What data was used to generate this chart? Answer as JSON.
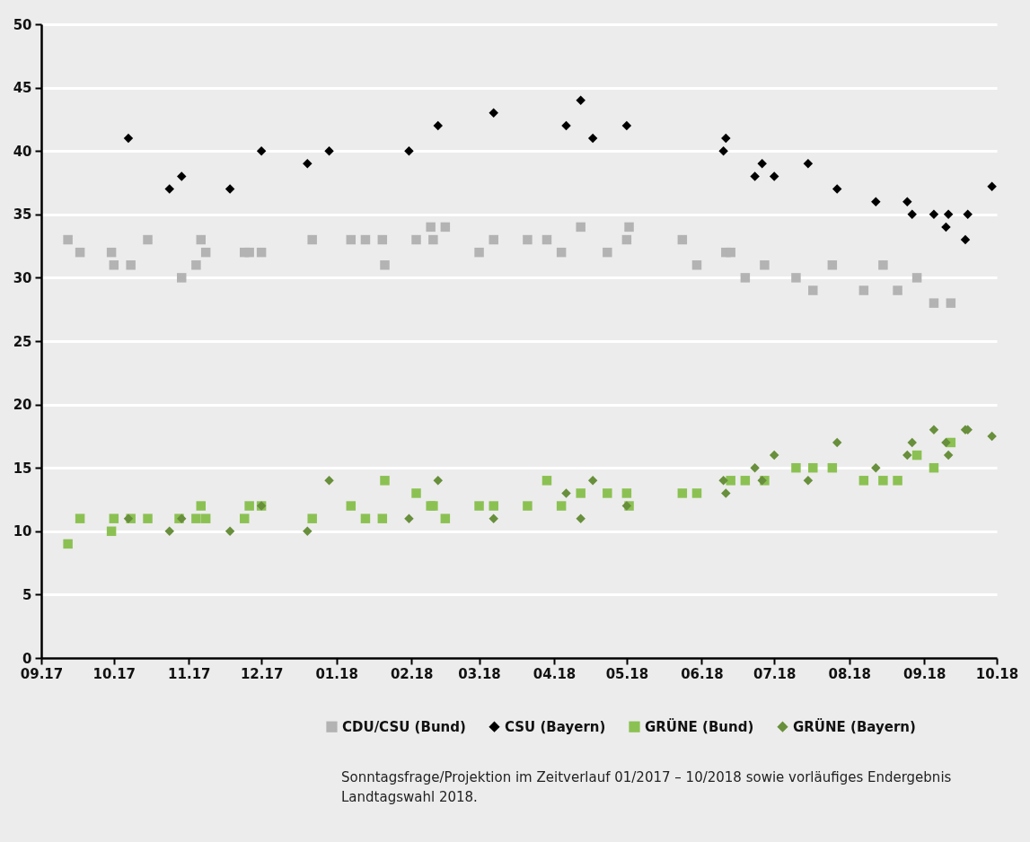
{
  "chart_data": {
    "type": "scatter",
    "xlim": [
      "2017-09-01",
      "2018-10-01"
    ],
    "xticks": [
      {
        "value": "2017-09-01",
        "label": "09.17"
      },
      {
        "value": "2017-10-01",
        "label": "10.17"
      },
      {
        "value": "2017-11-01",
        "label": "11.17"
      },
      {
        "value": "2017-12-01",
        "label": "12.17"
      },
      {
        "value": "2018-01-01",
        "label": "01.18"
      },
      {
        "value": "2018-02-01",
        "label": "02.18"
      },
      {
        "value": "2018-03-01",
        "label": "03.18"
      },
      {
        "value": "2018-04-01",
        "label": "04.18"
      },
      {
        "value": "2018-05-01",
        "label": "05.18"
      },
      {
        "value": "2018-06-01",
        "label": "06.18"
      },
      {
        "value": "2018-07-01",
        "label": "07.18"
      },
      {
        "value": "2018-08-01",
        "label": "08.18"
      },
      {
        "value": "2018-09-01",
        "label": "09.18"
      },
      {
        "value": "2018-10-01",
        "label": "10.18"
      }
    ],
    "ylim": [
      0,
      50
    ],
    "yticks": [
      0,
      5,
      10,
      15,
      20,
      25,
      30,
      35,
      40,
      45,
      50
    ],
    "grid": "y",
    "legend": "bottom right",
    "annotations": [
      "Sonntagsfrage/Projektion im Zeitverlauf 01/2017 – 10/2018 sowie vorläufiges Endergebnis Landtagswahl 2018."
    ],
    "series": [
      {
        "name": "CDU/CSU (Bund)",
        "color": "#b3b3b3",
        "marker": "square",
        "x": [
          "2017-09-12",
          "2017-09-17",
          "2017-09-30",
          "2017-10-01",
          "2017-10-08",
          "2017-10-15",
          "2017-10-29",
          "2017-11-04",
          "2017-11-06",
          "2017-11-08",
          "2017-11-24",
          "2017-11-26",
          "2017-12-01",
          "2017-12-22",
          "2018-01-07",
          "2018-01-13",
          "2018-01-20",
          "2018-01-21",
          "2018-02-03",
          "2018-02-09",
          "2018-02-10",
          "2018-02-15",
          "2018-03-01",
          "2018-03-07",
          "2018-03-21",
          "2018-03-29",
          "2018-04-04",
          "2018-04-12",
          "2018-04-23",
          "2018-05-01",
          "2018-05-02",
          "2018-05-24",
          "2018-05-30",
          "2018-06-11",
          "2018-06-13",
          "2018-06-19",
          "2018-06-27",
          "2018-07-10",
          "2018-07-17",
          "2018-07-25",
          "2018-08-07",
          "2018-08-15",
          "2018-08-21",
          "2018-08-29",
          "2018-09-05",
          "2018-09-12"
        ],
        "values": [
          33,
          32,
          32,
          31,
          31,
          33,
          30,
          31,
          33,
          32,
          32,
          32,
          32,
          33,
          33,
          33,
          33,
          31,
          33,
          34,
          33,
          34,
          32,
          33,
          33,
          33,
          32,
          34,
          32,
          33,
          34,
          33,
          31,
          32,
          32,
          30,
          31,
          30,
          29,
          31,
          29,
          31,
          29,
          30,
          28,
          28
        ]
      },
      {
        "name": "CSU (Bayern)",
        "color": "#000000",
        "marker": "diamond",
        "x": [
          "2017-10-07",
          "2017-10-24",
          "2017-10-29",
          "2017-11-18",
          "2017-12-01",
          "2017-12-20",
          "2017-12-29",
          "2018-01-31",
          "2018-02-12",
          "2018-03-07",
          "2018-04-06",
          "2018-04-12",
          "2018-04-17",
          "2018-05-01",
          "2018-06-10",
          "2018-06-11",
          "2018-06-23",
          "2018-06-26",
          "2018-07-01",
          "2018-07-15",
          "2018-07-27",
          "2018-08-12",
          "2018-08-25",
          "2018-08-27",
          "2018-09-05",
          "2018-09-10",
          "2018-09-11",
          "2018-09-18",
          "2018-09-19",
          "2018-09-29"
        ],
        "values": [
          41,
          37,
          38,
          37,
          40,
          39,
          40,
          40,
          42,
          43,
          42,
          44,
          41,
          42,
          40,
          41,
          38,
          39,
          38,
          39,
          37,
          36,
          36,
          35,
          35,
          34,
          35,
          33,
          35,
          37.2
        ]
      },
      {
        "name": "GRÜNE (Bund)",
        "color": "#8bc152",
        "marker": "square",
        "x": [
          "2017-09-12",
          "2017-09-17",
          "2017-09-30",
          "2017-10-01",
          "2017-10-08",
          "2017-10-15",
          "2017-10-28",
          "2017-11-04",
          "2017-11-06",
          "2017-11-08",
          "2017-11-24",
          "2017-11-26",
          "2017-12-01",
          "2017-12-22",
          "2018-01-07",
          "2018-01-13",
          "2018-01-20",
          "2018-01-21",
          "2018-02-03",
          "2018-02-09",
          "2018-02-10",
          "2018-02-15",
          "2018-03-01",
          "2018-03-07",
          "2018-03-21",
          "2018-03-29",
          "2018-04-04",
          "2018-04-12",
          "2018-04-23",
          "2018-05-01",
          "2018-05-02",
          "2018-05-24",
          "2018-05-30",
          "2018-06-13",
          "2018-06-19",
          "2018-06-27",
          "2018-07-10",
          "2018-07-17",
          "2018-07-25",
          "2018-08-07",
          "2018-08-15",
          "2018-08-21",
          "2018-08-29",
          "2018-09-05",
          "2018-09-12"
        ],
        "values": [
          9,
          11,
          10,
          11,
          11,
          11,
          11,
          11,
          12,
          11,
          11,
          12,
          12,
          11,
          12,
          11,
          11,
          14,
          13,
          12,
          12,
          11,
          12,
          12,
          12,
          14,
          12,
          13,
          13,
          13,
          12,
          13,
          13,
          14,
          14,
          14,
          15,
          15,
          15,
          14,
          14,
          14,
          16,
          15,
          17
        ]
      },
      {
        "name": "GRÜNE (Bayern)",
        "color": "#688f3b",
        "marker": "diamond",
        "x": [
          "2017-10-07",
          "2017-10-24",
          "2017-10-29",
          "2017-11-18",
          "2017-12-01",
          "2017-12-20",
          "2017-12-29",
          "2018-01-31",
          "2018-02-12",
          "2018-03-07",
          "2018-04-06",
          "2018-04-12",
          "2018-04-17",
          "2018-05-01",
          "2018-06-10",
          "2018-06-11",
          "2018-06-23",
          "2018-06-26",
          "2018-07-01",
          "2018-07-15",
          "2018-07-27",
          "2018-08-12",
          "2018-08-25",
          "2018-08-27",
          "2018-09-05",
          "2018-09-10",
          "2018-09-11",
          "2018-09-18",
          "2018-09-19",
          "2018-09-29"
        ],
        "values": [
          11,
          10,
          11,
          10,
          12,
          10,
          14,
          11,
          14,
          11,
          13,
          11,
          14,
          12,
          14,
          13,
          15,
          14,
          16,
          14,
          17,
          15,
          16,
          17,
          18,
          17,
          16,
          18,
          18,
          17.5
        ]
      }
    ]
  }
}
